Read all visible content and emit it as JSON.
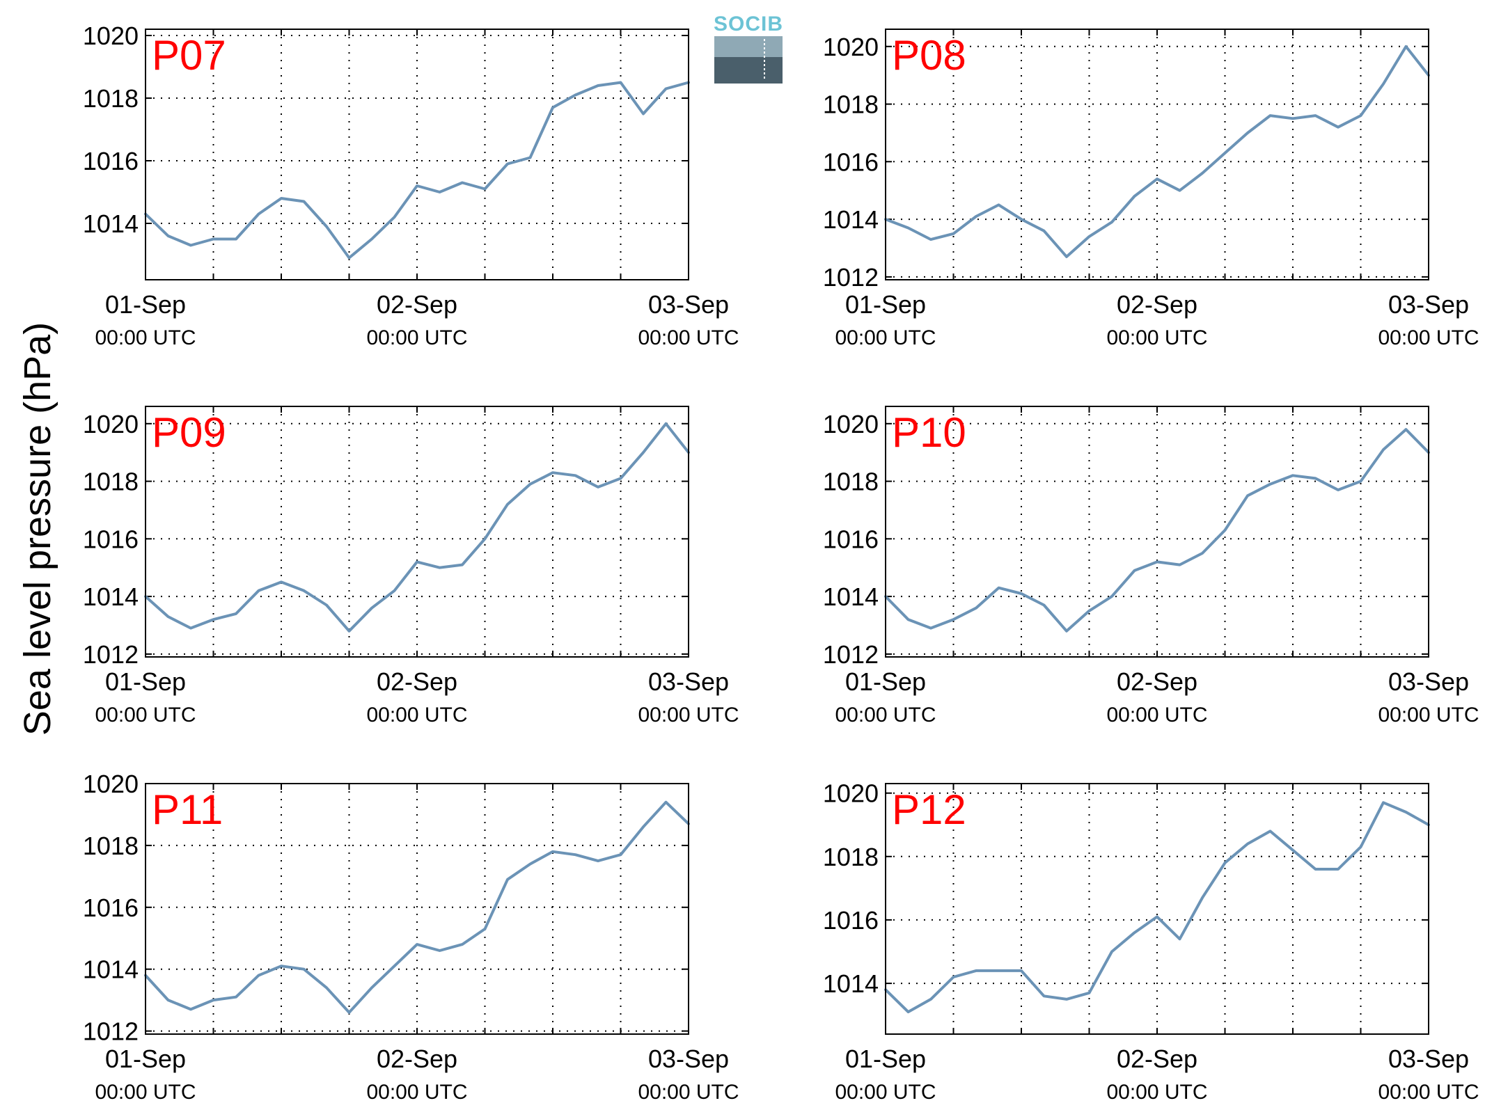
{
  "figure": {
    "ylabel": "Sea level pressure (hPa)",
    "logo_text": "SOCIB",
    "line_color": "#6b93b6",
    "label_color": "#ff0000"
  },
  "chart_data": [
    {
      "type": "line",
      "label": "P07",
      "x_ticks": [
        {
          "date": "01-Sep",
          "time": "00:00 UTC"
        },
        {
          "date": "02-Sep",
          "time": "00:00 UTC"
        },
        {
          "date": "03-Sep",
          "time": "00:00 UTC"
        }
      ],
      "xlim": [
        "2015-09-01T00:00",
        "2015-09-03T00:00"
      ],
      "ylim": [
        1012.2,
        1020.2
      ],
      "yticks": [
        1014,
        1016,
        1018,
        1020
      ],
      "grid": true,
      "series": [
        {
          "x": [
            "2015-09-01T00:00",
            "2015-09-01T02:00",
            "2015-09-01T04:00",
            "2015-09-01T06:00",
            "2015-09-01T08:00",
            "2015-09-01T10:00",
            "2015-09-01T12:00",
            "2015-09-01T14:00",
            "2015-09-01T16:00",
            "2015-09-01T18:00",
            "2015-09-01T20:00",
            "2015-09-01T22:00",
            "2015-09-02T00:00",
            "2015-09-02T02:00",
            "2015-09-02T04:00",
            "2015-09-02T06:00",
            "2015-09-02T08:00",
            "2015-09-02T10:00",
            "2015-09-02T12:00",
            "2015-09-02T14:00",
            "2015-09-02T16:00",
            "2015-09-02T18:00",
            "2015-09-02T20:00",
            "2015-09-02T22:00",
            "2015-09-03T00:00"
          ],
          "values": [
            1014.3,
            1013.6,
            1013.3,
            1013.5,
            1013.5,
            1014.3,
            1014.8,
            1014.7,
            1013.9,
            1012.9,
            1013.5,
            1014.2,
            1015.2,
            1015.0,
            1015.3,
            1015.1,
            1015.9,
            1016.1,
            1017.7,
            1018.1,
            1018.4,
            1018.5,
            1017.5,
            1018.3,
            1018.5
          ]
        }
      ]
    },
    {
      "type": "line",
      "label": "P08",
      "x_ticks": [
        {
          "date": "01-Sep",
          "time": "00:00 UTC"
        },
        {
          "date": "02-Sep",
          "time": "00:00 UTC"
        },
        {
          "date": "03-Sep",
          "time": "00:00 UTC"
        }
      ],
      "xlim": [
        "2015-09-01T00:00",
        "2015-09-03T00:00"
      ],
      "ylim": [
        1011.9,
        1020.6
      ],
      "yticks": [
        1012,
        1014,
        1016,
        1018,
        1020
      ],
      "grid": true,
      "series": [
        {
          "x": [
            "2015-09-01T00:00",
            "2015-09-01T02:00",
            "2015-09-01T04:00",
            "2015-09-01T06:00",
            "2015-09-01T08:00",
            "2015-09-01T10:00",
            "2015-09-01T12:00",
            "2015-09-01T14:00",
            "2015-09-01T16:00",
            "2015-09-01T18:00",
            "2015-09-01T20:00",
            "2015-09-01T22:00",
            "2015-09-02T00:00",
            "2015-09-02T02:00",
            "2015-09-02T04:00",
            "2015-09-02T06:00",
            "2015-09-02T08:00",
            "2015-09-02T10:00",
            "2015-09-02T12:00",
            "2015-09-02T14:00",
            "2015-09-02T16:00",
            "2015-09-02T18:00",
            "2015-09-02T20:00",
            "2015-09-02T22:00",
            "2015-09-03T00:00"
          ],
          "values": [
            1014.0,
            1013.7,
            1013.3,
            1013.5,
            1014.1,
            1014.5,
            1014.0,
            1013.6,
            1012.7,
            1013.4,
            1013.9,
            1014.8,
            1015.4,
            1015.0,
            1015.6,
            1016.3,
            1017.0,
            1017.6,
            1017.5,
            1017.6,
            1017.2,
            1017.6,
            1018.7,
            1020.0,
            1019.0
          ]
        }
      ]
    },
    {
      "type": "line",
      "label": "P09",
      "x_ticks": [
        {
          "date": "01-Sep",
          "time": "00:00 UTC"
        },
        {
          "date": "02-Sep",
          "time": "00:00 UTC"
        },
        {
          "date": "03-Sep",
          "time": "00:00 UTC"
        }
      ],
      "xlim": [
        "2015-09-01T00:00",
        "2015-09-03T00:00"
      ],
      "ylim": [
        1011.9,
        1020.6
      ],
      "yticks": [
        1012,
        1014,
        1016,
        1018,
        1020
      ],
      "grid": true,
      "series": [
        {
          "x": [
            "2015-09-01T00:00",
            "2015-09-01T02:00",
            "2015-09-01T04:00",
            "2015-09-01T06:00",
            "2015-09-01T08:00",
            "2015-09-01T10:00",
            "2015-09-01T12:00",
            "2015-09-01T14:00",
            "2015-09-01T16:00",
            "2015-09-01T18:00",
            "2015-09-01T20:00",
            "2015-09-01T22:00",
            "2015-09-02T00:00",
            "2015-09-02T02:00",
            "2015-09-02T04:00",
            "2015-09-02T06:00",
            "2015-09-02T08:00",
            "2015-09-02T10:00",
            "2015-09-02T12:00",
            "2015-09-02T14:00",
            "2015-09-02T16:00",
            "2015-09-02T18:00",
            "2015-09-02T20:00",
            "2015-09-02T22:00",
            "2015-09-03T00:00"
          ],
          "values": [
            1014.0,
            1013.3,
            1012.9,
            1013.2,
            1013.4,
            1014.2,
            1014.5,
            1014.2,
            1013.7,
            1012.8,
            1013.6,
            1014.2,
            1015.2,
            1015.0,
            1015.1,
            1016.0,
            1017.2,
            1017.9,
            1018.3,
            1018.2,
            1017.8,
            1018.1,
            1019.0,
            1020.0,
            1019.0
          ]
        }
      ]
    },
    {
      "type": "line",
      "label": "P10",
      "x_ticks": [
        {
          "date": "01-Sep",
          "time": "00:00 UTC"
        },
        {
          "date": "02-Sep",
          "time": "00:00 UTC"
        },
        {
          "date": "03-Sep",
          "time": "00:00 UTC"
        }
      ],
      "xlim": [
        "2015-09-01T00:00",
        "2015-09-03T00:00"
      ],
      "ylim": [
        1011.9,
        1020.6
      ],
      "yticks": [
        1012,
        1014,
        1016,
        1018,
        1020
      ],
      "grid": true,
      "series": [
        {
          "x": [
            "2015-09-01T00:00",
            "2015-09-01T02:00",
            "2015-09-01T04:00",
            "2015-09-01T06:00",
            "2015-09-01T08:00",
            "2015-09-01T10:00",
            "2015-09-01T12:00",
            "2015-09-01T14:00",
            "2015-09-01T16:00",
            "2015-09-01T18:00",
            "2015-09-01T20:00",
            "2015-09-01T22:00",
            "2015-09-02T00:00",
            "2015-09-02T02:00",
            "2015-09-02T04:00",
            "2015-09-02T06:00",
            "2015-09-02T08:00",
            "2015-09-02T10:00",
            "2015-09-02T12:00",
            "2015-09-02T14:00",
            "2015-09-02T16:00",
            "2015-09-02T18:00",
            "2015-09-02T20:00",
            "2015-09-02T22:00",
            "2015-09-03T00:00"
          ],
          "values": [
            1014.0,
            1013.2,
            1012.9,
            1013.2,
            1013.6,
            1014.3,
            1014.1,
            1013.7,
            1012.8,
            1013.5,
            1014.0,
            1014.9,
            1015.2,
            1015.1,
            1015.5,
            1016.3,
            1017.5,
            1017.9,
            1018.2,
            1018.1,
            1017.7,
            1018.0,
            1019.1,
            1019.8,
            1019.0
          ]
        }
      ]
    },
    {
      "type": "line",
      "label": "P11",
      "x_ticks": [
        {
          "date": "01-Sep",
          "time": "00:00 UTC"
        },
        {
          "date": "02-Sep",
          "time": "00:00 UTC"
        },
        {
          "date": "03-Sep",
          "time": "00:00 UTC"
        }
      ],
      "xlim": [
        "2015-09-01T00:00",
        "2015-09-03T00:00"
      ],
      "ylim": [
        1011.9,
        1020.0
      ],
      "yticks": [
        1012,
        1014,
        1016,
        1018,
        1020
      ],
      "grid": true,
      "series": [
        {
          "x": [
            "2015-09-01T00:00",
            "2015-09-01T02:00",
            "2015-09-01T04:00",
            "2015-09-01T06:00",
            "2015-09-01T08:00",
            "2015-09-01T10:00",
            "2015-09-01T12:00",
            "2015-09-01T14:00",
            "2015-09-01T16:00",
            "2015-09-01T18:00",
            "2015-09-01T20:00",
            "2015-09-01T22:00",
            "2015-09-02T00:00",
            "2015-09-02T02:00",
            "2015-09-02T04:00",
            "2015-09-02T06:00",
            "2015-09-02T08:00",
            "2015-09-02T10:00",
            "2015-09-02T12:00",
            "2015-09-02T14:00",
            "2015-09-02T16:00",
            "2015-09-02T18:00",
            "2015-09-02T20:00",
            "2015-09-02T22:00",
            "2015-09-03T00:00"
          ],
          "values": [
            1013.8,
            1013.0,
            1012.7,
            1013.0,
            1013.1,
            1013.8,
            1014.1,
            1014.0,
            1013.4,
            1012.6,
            1013.4,
            1014.1,
            1014.8,
            1014.6,
            1014.8,
            1015.3,
            1016.9,
            1017.4,
            1017.8,
            1017.7,
            1017.5,
            1017.7,
            1018.6,
            1019.4,
            1018.7
          ]
        }
      ]
    },
    {
      "type": "line",
      "label": "P12",
      "x_ticks": [
        {
          "date": "01-Sep",
          "time": "00:00 UTC"
        },
        {
          "date": "02-Sep",
          "time": "00:00 UTC"
        },
        {
          "date": "03-Sep",
          "time": "00:00 UTC"
        }
      ],
      "xlim": [
        "2015-09-01T00:00",
        "2015-09-03T00:00"
      ],
      "ylim": [
        1012.4,
        1020.3
      ],
      "yticks": [
        1014,
        1016,
        1018,
        1020
      ],
      "grid": true,
      "series": [
        {
          "x": [
            "2015-09-01T00:00",
            "2015-09-01T02:00",
            "2015-09-01T04:00",
            "2015-09-01T06:00",
            "2015-09-01T08:00",
            "2015-09-01T10:00",
            "2015-09-01T12:00",
            "2015-09-01T14:00",
            "2015-09-01T16:00",
            "2015-09-01T18:00",
            "2015-09-01T20:00",
            "2015-09-01T22:00",
            "2015-09-02T00:00",
            "2015-09-02T02:00",
            "2015-09-02T04:00",
            "2015-09-02T06:00",
            "2015-09-02T08:00",
            "2015-09-02T10:00",
            "2015-09-02T12:00",
            "2015-09-02T14:00",
            "2015-09-02T16:00",
            "2015-09-02T18:00",
            "2015-09-02T20:00",
            "2015-09-02T22:00",
            "2015-09-03T00:00"
          ],
          "values": [
            1013.8,
            1013.1,
            1013.5,
            1014.2,
            1014.4,
            1014.4,
            1014.4,
            1013.6,
            1013.5,
            1013.7,
            1015.0,
            1015.6,
            1016.1,
            1015.4,
            1016.7,
            1017.8,
            1018.4,
            1018.8,
            1018.2,
            1017.6,
            1017.6,
            1018.3,
            1019.7,
            1019.4,
            1019.0
          ]
        }
      ]
    }
  ]
}
